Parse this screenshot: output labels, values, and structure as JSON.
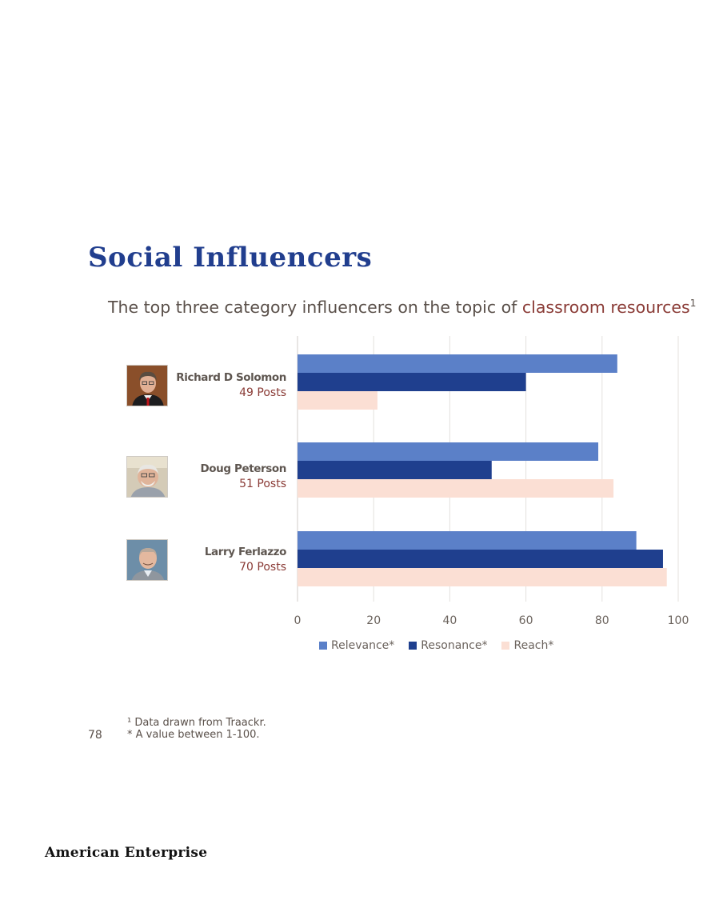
{
  "page": {
    "title": "Social Influencers",
    "subtitle_pre": "The top three category influencers on the topic of ",
    "subtitle_highlight": "classroom resources",
    "subtitle_sup": "1",
    "footnote_1": "¹ Data drawn from Traackr.",
    "footnote_2": "* A value between 1-100.",
    "page_number": "78",
    "publisher": "American Enterprise"
  },
  "influencers": [
    {
      "name": "Richard D Solomon",
      "posts": "49 Posts"
    },
    {
      "name": "Doug Peterson",
      "posts": "51 Posts"
    },
    {
      "name": "Larry Ferlazzo",
      "posts": "70 Posts"
    }
  ],
  "chart_data": {
    "type": "bar",
    "orientation": "horizontal",
    "categories": [
      "Richard D Solomon",
      "Doug Peterson",
      "Larry Ferlazzo"
    ],
    "series": [
      {
        "name": "Relevance*",
        "color": "#5b80c8",
        "values": [
          84,
          79,
          89
        ]
      },
      {
        "name": "Resonance*",
        "color": "#1f3f8e",
        "values": [
          60,
          51,
          96
        ]
      },
      {
        "name": "Reach*",
        "color": "#fbdfd4",
        "values": [
          21,
          83,
          97
        ]
      }
    ],
    "xlim": [
      0,
      100
    ],
    "ticks": [
      "0",
      "20",
      "40",
      "60",
      "80",
      "100"
    ],
    "grid": true,
    "legend_position": "bottom"
  }
}
